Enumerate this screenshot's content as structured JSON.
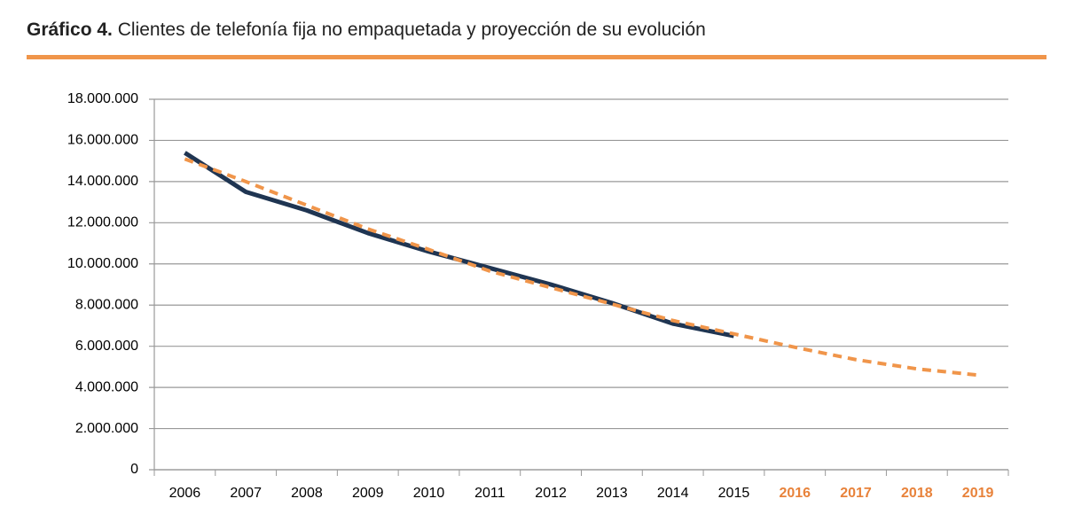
{
  "chart_data": {
    "type": "line",
    "title_label": "Gráfico 4.",
    "title": "Clientes de telefonía fija no empaquetada y proyección de su evolución",
    "categories": [
      "2006",
      "2007",
      "2008",
      "2009",
      "2010",
      "2011",
      "2012",
      "2013",
      "2014",
      "2015",
      "2016",
      "2017",
      "2018",
      "2019"
    ],
    "category_colors": [
      "#000000",
      "#000000",
      "#000000",
      "#000000",
      "#000000",
      "#000000",
      "#000000",
      "#000000",
      "#000000",
      "#000000",
      "#e8823a",
      "#e8823a",
      "#e8823a",
      "#e8823a"
    ],
    "series": [
      {
        "color": "#1f3552",
        "dashed": false,
        "values": [
          15400000,
          13500000,
          12600000,
          11500000,
          10600000,
          9800000,
          9000000,
          8100000,
          7100000,
          6500000,
          null,
          null,
          null,
          null
        ]
      },
      {
        "color": "#f0954a",
        "dashed": true,
        "values": [
          15100000,
          14000000,
          12850000,
          11700000,
          10700000,
          9650000,
          8850000,
          8050000,
          7250000,
          6600000,
          5950000,
          5350000,
          4900000,
          4600000
        ]
      }
    ],
    "ylim": [
      0,
      18000000
    ],
    "yticks": [
      0,
      {
        "value": 2000000,
        "label": "2.000.000"
      },
      {
        "value": 4000000,
        "label": "4.000.000"
      },
      {
        "value": 6000000,
        "label": "6.000.000"
      },
      {
        "value": 8000000,
        "label": "8.000.000"
      },
      {
        "value": 10000000,
        "label": "10.000.000"
      },
      {
        "value": 12000000,
        "label": "12.000.000"
      },
      {
        "value": 14000000,
        "label": "14.000.000"
      },
      {
        "value": 16000000,
        "label": "16.000.000"
      },
      {
        "value": 18000000,
        "label": "18.000.000"
      }
    ],
    "grid": true
  }
}
